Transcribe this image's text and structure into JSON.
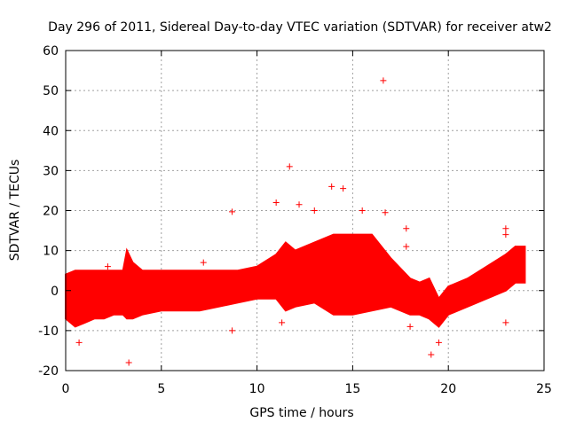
{
  "chart_data": {
    "type": "scatter",
    "title": "Day 296 of 2011, Sidereal Day-to-day VTEC variation (SDTVAR) for receiver atw2",
    "xlabel": "GPS time / hours",
    "ylabel": "SDTVAR / TECUs",
    "xlim": [
      0,
      25
    ],
    "ylim": [
      -20,
      60
    ],
    "xticks": [
      0,
      5,
      10,
      15,
      20,
      25
    ],
    "yticks": [
      -20,
      -10,
      0,
      10,
      20,
      30,
      40,
      50,
      60
    ],
    "grid": true,
    "marker": "+",
    "color": "#ff0000",
    "band": [
      {
        "x": 0.0,
        "low": -7,
        "high": 4
      },
      {
        "x": 0.5,
        "low": -9,
        "high": 5
      },
      {
        "x": 1.0,
        "low": -8,
        "high": 5
      },
      {
        "x": 1.5,
        "low": -7,
        "high": 5
      },
      {
        "x": 2.0,
        "low": -7,
        "high": 5
      },
      {
        "x": 2.5,
        "low": -6,
        "high": 5
      },
      {
        "x": 3.0,
        "low": -6,
        "high": 5
      },
      {
        "x": 3.2,
        "low": -7,
        "high": 10
      },
      {
        "x": 3.5,
        "low": -7,
        "high": 7
      },
      {
        "x": 4.0,
        "low": -6,
        "high": 5
      },
      {
        "x": 5.0,
        "low": -5,
        "high": 5
      },
      {
        "x": 6.0,
        "low": -5,
        "high": 5
      },
      {
        "x": 7.0,
        "low": -5,
        "high": 5
      },
      {
        "x": 8.0,
        "low": -4,
        "high": 5
      },
      {
        "x": 9.0,
        "low": -3,
        "high": 5
      },
      {
        "x": 10.0,
        "low": -2,
        "high": 6
      },
      {
        "x": 11.0,
        "low": -2,
        "high": 9
      },
      {
        "x": 11.5,
        "low": -5,
        "high": 12
      },
      {
        "x": 12.0,
        "low": -4,
        "high": 10
      },
      {
        "x": 13.0,
        "low": -3,
        "high": 12
      },
      {
        "x": 14.0,
        "low": -6,
        "high": 14
      },
      {
        "x": 15.0,
        "low": -6,
        "high": 14
      },
      {
        "x": 16.0,
        "low": -5,
        "high": 14
      },
      {
        "x": 17.0,
        "low": -4,
        "high": 8
      },
      {
        "x": 18.0,
        "low": -6,
        "high": 3
      },
      {
        "x": 18.5,
        "low": -6,
        "high": 2
      },
      {
        "x": 19.0,
        "low": -7,
        "high": 3
      },
      {
        "x": 19.5,
        "low": -9,
        "high": -2
      },
      {
        "x": 20.0,
        "low": -6,
        "high": 1
      },
      {
        "x": 21.0,
        "low": -4,
        "high": 3
      },
      {
        "x": 22.0,
        "low": -2,
        "high": 6
      },
      {
        "x": 23.0,
        "low": 0,
        "high": 9
      },
      {
        "x": 23.5,
        "low": 2,
        "high": 11
      },
      {
        "x": 24.0,
        "low": 2,
        "high": 11
      }
    ],
    "outliers": [
      {
        "x": 3.3,
        "y": -18
      },
      {
        "x": 16.6,
        "y": 52.5
      },
      {
        "x": 11.7,
        "y": 31
      },
      {
        "x": 14.5,
        "y": 25.5
      },
      {
        "x": 8.7,
        "y": 19.7
      },
      {
        "x": 16.7,
        "y": 19.5
      },
      {
        "x": 11.0,
        "y": 22
      },
      {
        "x": 13.9,
        "y": 26
      },
      {
        "x": 19.1,
        "y": -16
      },
      {
        "x": 23.0,
        "y": 15.5
      },
      {
        "x": 23.0,
        "y": 14
      },
      {
        "x": 17.8,
        "y": 15.5
      },
      {
        "x": 17.8,
        "y": 11
      },
      {
        "x": 11.3,
        "y": -8
      },
      {
        "x": 12.2,
        "y": 21.5
      },
      {
        "x": 15.5,
        "y": 20
      },
      {
        "x": 13.0,
        "y": 20
      },
      {
        "x": 23.0,
        "y": -8
      },
      {
        "x": 18.0,
        "y": -9
      },
      {
        "x": 8.7,
        "y": -10
      },
      {
        "x": 0.7,
        "y": -13
      },
      {
        "x": 19.5,
        "y": -13
      },
      {
        "x": 7.2,
        "y": 7
      },
      {
        "x": 2.2,
        "y": 6
      }
    ]
  }
}
